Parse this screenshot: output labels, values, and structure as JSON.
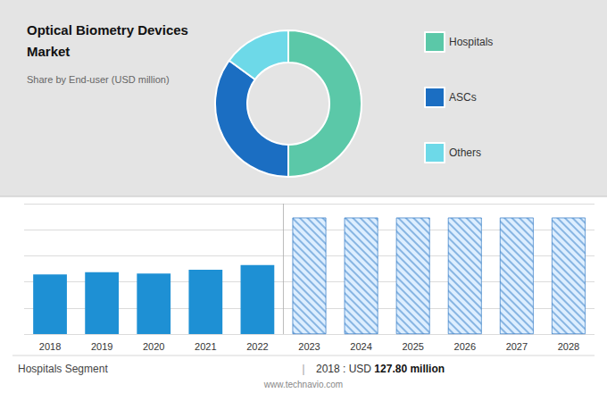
{
  "chart_data": [
    {
      "type": "pie",
      "title": "Optical Biometry Devices\nMarket",
      "subtitle": "Share by End-user (USD million)",
      "categories": [
        "Hospitals",
        "ASCs",
        "Others"
      ],
      "values": [
        50,
        35,
        15
      ],
      "colors": [
        "#5BC8A8",
        "#1B6EC2",
        "#6DD9E8"
      ],
      "legend": "right"
    },
    {
      "type": "bar",
      "categories": [
        2018,
        2019,
        2020,
        2021,
        2022,
        2023,
        2024,
        2025,
        2026,
        2027,
        2028
      ],
      "series": [
        {
          "color": "#1E90D4",
          "values": [
            127.8,
            133,
            130,
            138,
            148,
            null,
            null,
            null,
            null,
            null,
            null
          ]
        },
        {
          "color": "#DDEEFF",
          "values": [
            null,
            null,
            null,
            null,
            null,
            250,
            250,
            250,
            250,
            250,
            250
          ]
        }
      ],
      "ylim": [
        0,
        280
      ],
      "yticks": [
        0,
        56,
        112,
        168,
        224,
        280
      ],
      "grid": true,
      "tick_labels": "x",
      "annotations": [
        "Hospitals Segment",
        "|",
        "2018 : USD ",
        "127.80 million",
        "www.technavio.com"
      ]
    }
  ]
}
